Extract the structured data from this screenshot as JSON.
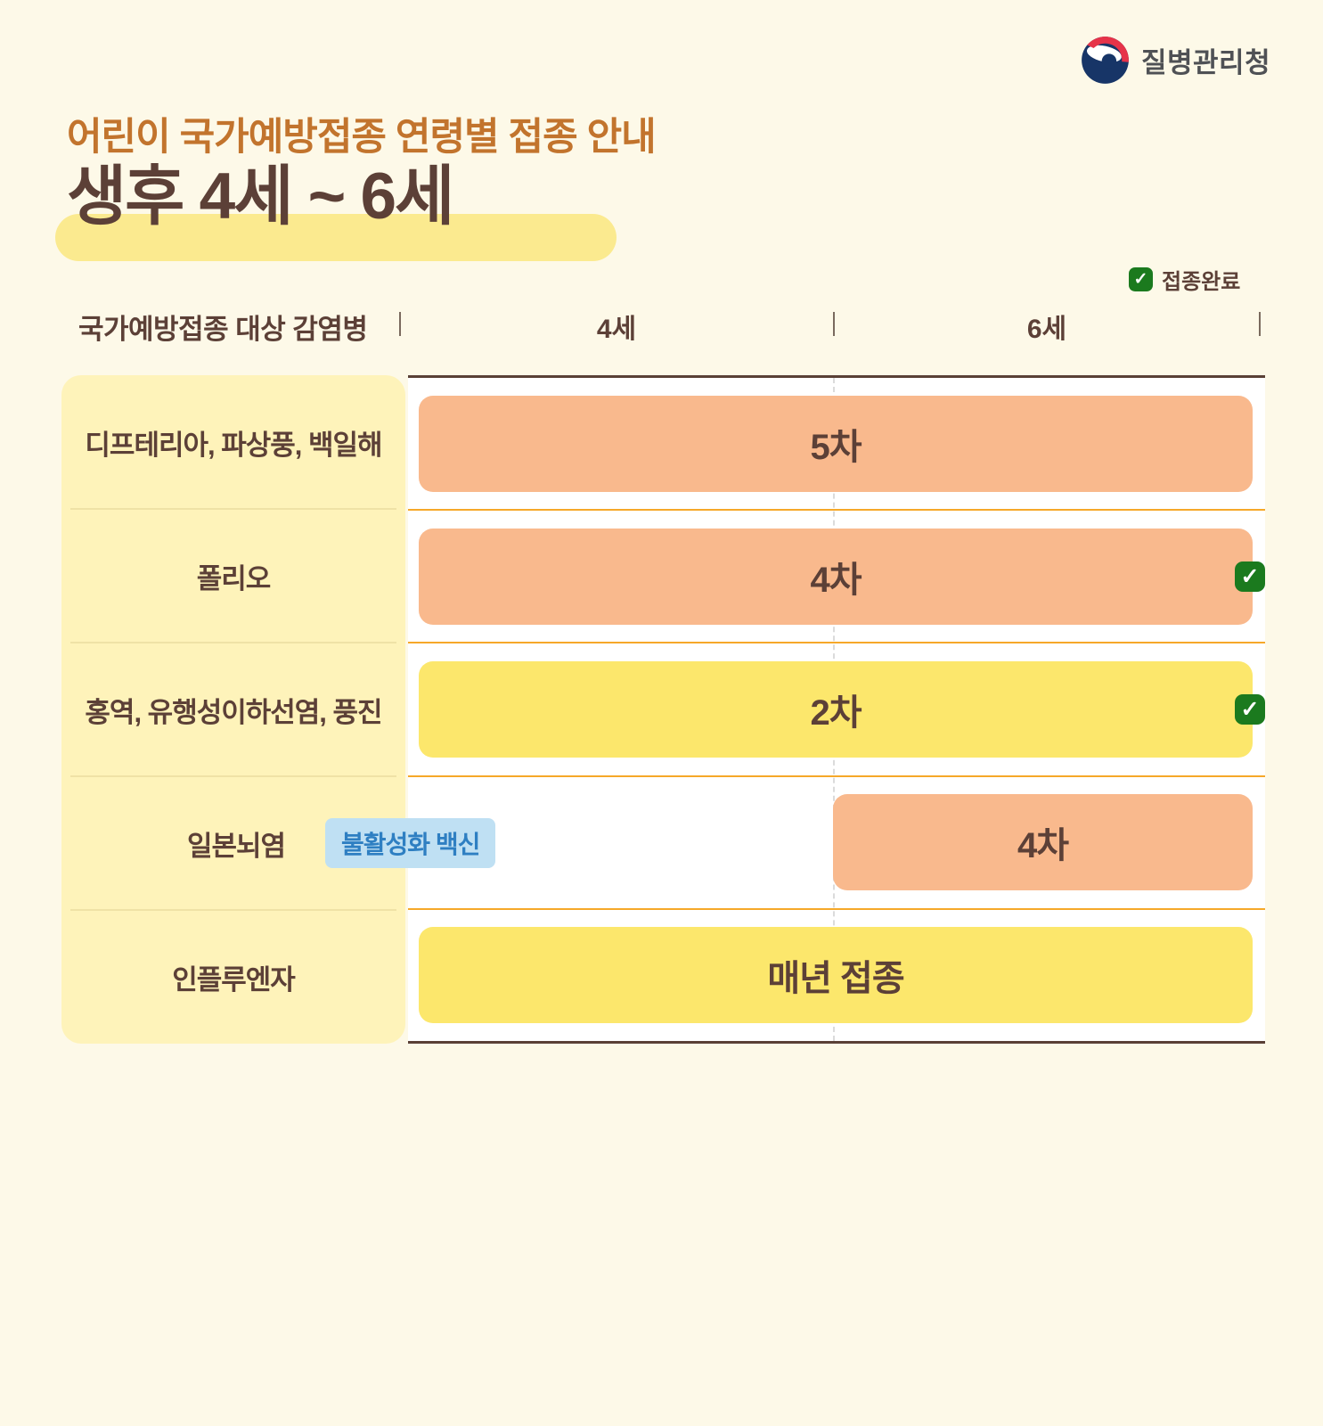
{
  "page": {
    "background": "#FDF9E8"
  },
  "logo": {
    "agency_name": "질병관리청",
    "symbol_navy": "#173567",
    "symbol_red": "#E63349",
    "text_color": "#4F5155"
  },
  "header": {
    "subtitle": "어린이 국가예방접종 연령별 접종 안내",
    "title": "생후 4세 ~ 6세",
    "subtitle_color": "#C2742D",
    "title_color": "#5C4037",
    "highlight_color": "#FBEA8F"
  },
  "legend": {
    "label": "접종완료",
    "check_color": "#1B7A1E"
  },
  "table": {
    "corner_header": "국가예방접종 대상 감염병",
    "age_columns": [
      "4세",
      "6세"
    ],
    "panel_color": "#FEF3BA",
    "separator_color": "#F6A829",
    "orange_bar_color": "#F9B98D",
    "yellow_bar_color": "#FCE76C",
    "rows": [
      {
        "disease": "디프테리아, 파상풍, 백일해",
        "dose": "5차",
        "bar_color": "#F9B98D",
        "span": "both",
        "completed": false
      },
      {
        "disease": "폴리오",
        "dose": "4차",
        "bar_color": "#F9B98D",
        "span": "both",
        "completed": true
      },
      {
        "disease": "홍역, 유행성이하선염, 풍진",
        "dose": "2차",
        "bar_color": "#FCE76C",
        "span": "both",
        "completed": true
      },
      {
        "disease": "일본뇌염",
        "tag": "불활성화 백신",
        "dose": "4차",
        "bar_color": "#F9B98D",
        "span": "right",
        "completed": false
      },
      {
        "disease": "인플루엔자",
        "dose": "매년 접종",
        "bar_color": "#FCE76C",
        "span": "both",
        "completed": false
      }
    ]
  },
  "chart_data": {
    "type": "table",
    "title": "생후 4세 ~ 6세",
    "subtitle": "어린이 국가예방접종 연령별 접종 안내",
    "row_header": "국가예방접종 대상 감염병",
    "columns": [
      "4세",
      "6세"
    ],
    "legend_label": "접종완료",
    "rows": [
      {
        "disease": "디프테리아, 파상풍, 백일해",
        "dose": "5차",
        "age_span": [
          "4세",
          "6세"
        ],
        "completed": false
      },
      {
        "disease": "폴리오",
        "dose": "4차",
        "age_span": [
          "4세",
          "6세"
        ],
        "completed": true
      },
      {
        "disease": "홍역, 유행성이하선염, 풍진",
        "dose": "2차",
        "age_span": [
          "4세",
          "6세"
        ],
        "completed": true
      },
      {
        "disease": "일본뇌염",
        "note": "불활성화 백신",
        "dose": "4차",
        "age_span": [
          "6세"
        ],
        "completed": false
      },
      {
        "disease": "인플루엔자",
        "dose": "매년 접종",
        "age_span": [
          "4세",
          "6세"
        ],
        "completed": false
      }
    ]
  }
}
